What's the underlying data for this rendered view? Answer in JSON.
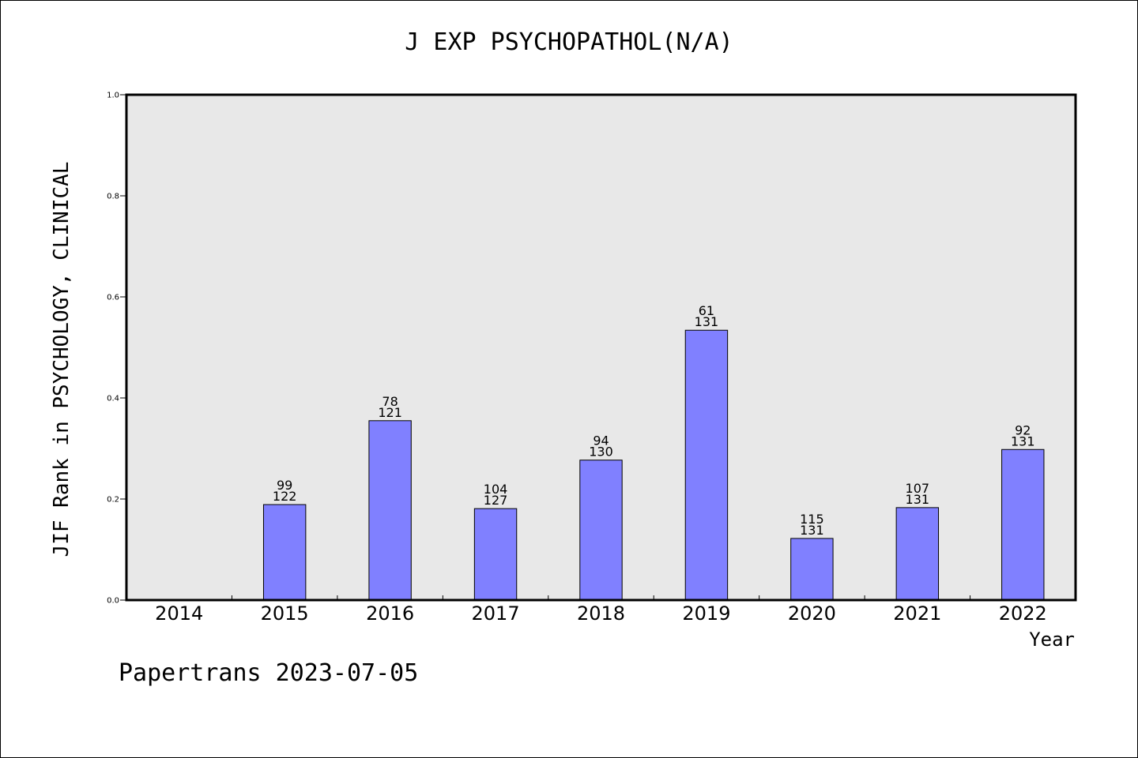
{
  "chart_data": {
    "type": "bar",
    "title": "J EXP PSYCHOPATHOL(N/A)",
    "xlabel": "Year",
    "ylabel": "JIF Rank in PSYCHOLOGY, CLINICAL",
    "ylim": [
      0,
      1
    ],
    "yticks": [
      "0.0",
      "0.2",
      "0.4",
      "0.6",
      "0.8",
      "1.0"
    ],
    "categories": [
      "2014",
      "2015",
      "2016",
      "2017",
      "2018",
      "2019",
      "2020",
      "2021",
      "2022"
    ],
    "values": [
      null,
      0.189,
      0.355,
      0.181,
      0.277,
      0.534,
      0.122,
      0.183,
      0.298
    ],
    "labels": [
      null,
      {
        "rank": "99",
        "total": "122"
      },
      {
        "rank": "78",
        "total": "121"
      },
      {
        "rank": "104",
        "total": "127"
      },
      {
        "rank": "94",
        "total": "130"
      },
      {
        "rank": "61",
        "total": "131"
      },
      {
        "rank": "115",
        "total": "131"
      },
      {
        "rank": "107",
        "total": "131"
      },
      {
        "rank": "92",
        "total": "131"
      }
    ],
    "grid": false,
    "colors": {
      "bar": "#8080ff",
      "plot_bg": "#e8e8e8",
      "axis": "#000000"
    }
  },
  "footer": "Papertrans 2023-07-05"
}
